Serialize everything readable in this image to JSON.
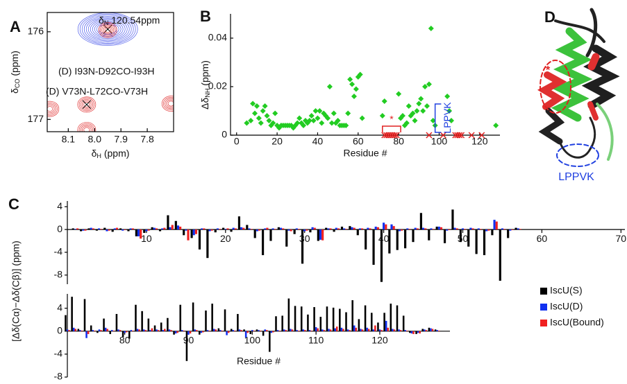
{
  "chart_data": [
    {
      "type": "contour",
      "panel_label": "A",
      "annotation": [
        "δ",
        "N",
        " 120.54ppm"
      ],
      "peak_labels": [
        "(D) I93N-D92CO-I93H",
        "(D) V73N-L72CO-V73H"
      ],
      "xlabel": [
        "δ",
        "H",
        " (ppm)"
      ],
      "ylabel": [
        "δ",
        "CO",
        " (ppm)"
      ],
      "xlim": [
        8.18,
        7.7
      ],
      "ylim": [
        175.78,
        177.14
      ],
      "xticks": [
        8.1,
        {
          "value": 8,
          "label": "8.0"
        },
        7.9,
        7.8
      ],
      "yticks": [
        176,
        177
      ],
      "peaks": [
        {
          "x": 7.95,
          "y": 175.97,
          "color": "#2233e6",
          "marker": "x"
        },
        {
          "x": 7.95,
          "y": 175.98,
          "color": "#e03030"
        },
        {
          "x": 8.03,
          "y": 176.83,
          "color": "#e03030",
          "marker": "x"
        },
        {
          "x": 7.71,
          "y": 176.82,
          "color": "#e03030"
        },
        {
          "x": 8.17,
          "y": 176.88,
          "color": "#e03030"
        },
        {
          "x": 8.03,
          "y": 177.12,
          "color": "#e03030"
        }
      ]
    },
    {
      "type": "scatter",
      "panel_label": "B",
      "xlabel": "Residue #",
      "ylabel": [
        "Δδ",
        "NH",
        " (ppm)"
      ],
      "xlim": [
        -3,
        130
      ],
      "ylim": [
        0,
        0.05
      ],
      "xticks": [
        0,
        20,
        40,
        60,
        80,
        100,
        120
      ],
      "yticks": [
        0,
        0.02,
        0.04
      ],
      "series": [
        {
          "color": "#22cc22",
          "marker": "diamond",
          "x": [
            5,
            7,
            8,
            9,
            10,
            11,
            12,
            13,
            14,
            15,
            16,
            17,
            18,
            19,
            20,
            21,
            22,
            23,
            24,
            25,
            26,
            27,
            28,
            29,
            30,
            31,
            32,
            33,
            34,
            35,
            36,
            37,
            38,
            39,
            40,
            41,
            42,
            43,
            44,
            45,
            46,
            47,
            48,
            49,
            50,
            51,
            52,
            53,
            54,
            55,
            56,
            57,
            58,
            59,
            60,
            61,
            62,
            72,
            73,
            80,
            81,
            82,
            83,
            84,
            85,
            86,
            87,
            88,
            89,
            90,
            91,
            92,
            93,
            94,
            95,
            96,
            97,
            98,
            104,
            105,
            106,
            128
          ],
          "values": [
            0.005,
            0.006,
            0.013,
            0.009,
            0.012,
            0.007,
            0.005,
            0.01,
            0.012,
            0.008,
            0.006,
            0.004,
            0.005,
            0.009,
            0.004,
            0.003,
            0.004,
            0.004,
            0.004,
            0.004,
            0.004,
            0.004,
            0.003,
            0.004,
            0.005,
            0.007,
            0.005,
            0.004,
            0.006,
            0.005,
            0.006,
            0.008,
            0.006,
            0.01,
            0.007,
            0.01,
            0.005,
            0.009,
            0.008,
            0.007,
            0.02,
            0.005,
            0.009,
            0.005,
            0.006,
            0.004,
            0.004,
            0.004,
            0.004,
            0.009,
            0.023,
            0.021,
            0.016,
            0.019,
            0.024,
            0.025,
            0.007,
            0.008,
            0.014,
            0.017,
            0.007,
            0.008,
            0.004,
            0.005,
            0.012,
            0.008,
            0.009,
            0.006,
            0.01,
            0.013,
            0.015,
            0.01,
            0.02,
            0.012,
            0.021,
            0.044,
            0.006,
            0.004,
            0.016,
            0.01,
            0.006,
            0.004
          ]
        },
        {
          "color": "#e02020",
          "marker": "x",
          "x": [
            73,
            74,
            75,
            76,
            77,
            78,
            79,
            95,
            102,
            108,
            109,
            110,
            111,
            116,
            121
          ],
          "values": [
            0,
            0,
            0,
            0,
            0,
            0,
            0,
            0,
            0,
            0,
            0,
            0,
            0,
            0,
            0
          ]
        }
      ],
      "annotations": [
        {
          "text": "*",
          "color": "#e02020"
        },
        {
          "text": "LPPVK",
          "color": "#2040e0"
        }
      ]
    },
    {
      "type": "bar",
      "panel_label": "C",
      "ylabel": "[Δδ(Cα)−Δδ(Cβ)] (ppm)",
      "x": [
        1,
        2,
        3,
        4,
        5,
        6,
        7,
        8,
        9,
        10,
        11,
        12,
        13,
        14,
        15,
        16,
        17,
        18,
        19,
        20,
        21,
        22,
        23,
        24,
        25,
        26,
        27,
        28,
        29,
        30,
        31,
        32,
        33,
        34,
        35,
        36,
        37,
        38,
        39,
        40,
        41,
        42,
        43,
        44,
        45,
        46,
        47,
        48,
        49,
        50,
        51,
        52,
        53,
        54,
        55,
        56,
        57
      ],
      "xlim": [
        0,
        70.5
      ],
      "ylim": [
        -9.6,
        5
      ],
      "xticks": [
        10,
        20,
        30,
        40,
        50,
        60,
        70
      ],
      "yticks": [
        4,
        0,
        -4,
        -8
      ],
      "series": [
        {
          "color": "#000000",
          "values": [
            0.2,
            -0.3,
            0.2,
            -0.2,
            0.3,
            -0.4,
            0.2,
            -0.3,
            -1.2,
            -0.6,
            0.4,
            -0.3,
            2.5,
            1.5,
            -1.0,
            -1.5,
            -3.5,
            -5.0,
            -0.5,
            0.3,
            -0.4,
            2.3,
            0.8,
            -1.5,
            -4.5,
            -2.0,
            0.4,
            -3.0,
            -0.8,
            -6.0,
            -0.5,
            -2.0,
            0.3,
            -0.4,
            0.5,
            0.6,
            -1.0,
            -3.5,
            -6.2,
            -9.2,
            -4.2,
            -3.6,
            -3.3,
            -2.2,
            2.9,
            -1.9,
            0.5,
            -2.4,
            3.5,
            -2.2,
            -3.0,
            -4.3,
            -4.5,
            -1.0,
            -9.0,
            -1.5,
            0.3
          ]
        },
        {
          "color": "#1030f0",
          "values": [
            0.1,
            -0.2,
            0.3,
            0.2,
            -0.3,
            0.2,
            -0.2,
            0.2,
            -1.2,
            -0.3,
            0.3,
            0.2,
            0.4,
            0.7,
            -0.2,
            -1.0,
            0.2,
            -0.3,
            0.2,
            0.1,
            0.3,
            0.4,
            0.2,
            -0.3,
            0.2,
            0.2,
            0.3,
            -0.2,
            0.2,
            -0.3,
            0.4,
            -1.8,
            0.2,
            0.3,
            0.2,
            0.4,
            0.2,
            0.3,
            0.5,
            1.2,
            0.9,
            -0.3,
            0.2,
            0.3,
            0.3,
            0.2,
            0.5,
            -0.2,
            0.3,
            0.2,
            0.3,
            0.2,
            -0.3,
            1.7,
            0.2,
            -0.2,
            0.2
          ]
        },
        {
          "color": "#f02020",
          "values": [
            0.2,
            -0.2,
            0.2,
            0.1,
            -0.2,
            0.3,
            -0.1,
            0.2,
            -1.6,
            -0.2,
            0.2,
            0.3,
            0.8,
            0.5,
            -1.9,
            -0.8,
            0.2,
            -0.2,
            0.1,
            0.2,
            0.2,
            0.3,
            0.1,
            -0.2,
            0.3,
            0.1,
            0.2,
            -0.3,
            0.1,
            -0.2,
            0.3,
            -1.9,
            0.2,
            0.2,
            0.1,
            0.3,
            0.2,
            0.2,
            0.4,
            0.9,
            0.6,
            -0.2,
            0.1,
            0.2,
            0.2,
            0.1,
            0.4,
            -0.1,
            0.2,
            0.1,
            0.2,
            0.1,
            -0.2,
            1.4,
            0.1,
            -0.1,
            0.1
          ]
        }
      ]
    },
    {
      "type": "bar",
      "xlabel": "Residue #",
      "legend": "right",
      "x": [
        71,
        72,
        73,
        74,
        75,
        76,
        77,
        78,
        79,
        80,
        81,
        82,
        83,
        84,
        85,
        86,
        87,
        88,
        89,
        90,
        91,
        92,
        93,
        94,
        95,
        96,
        97,
        98,
        99,
        100,
        101,
        102,
        103,
        104,
        105,
        106,
        107,
        108,
        109,
        110,
        111,
        112,
        113,
        114,
        115,
        116,
        117,
        118,
        119,
        120,
        121,
        122,
        123,
        124,
        125,
        126,
        127,
        128,
        129
      ],
      "xlim": [
        71,
        131
      ],
      "ylim": [
        -8,
        6.5
      ],
      "xticks": [
        80,
        90,
        100,
        110,
        120
      ],
      "yticks": [
        4,
        0,
        -4,
        -8
      ],
      "series": [
        {
          "name": "IscU(S)",
          "color": "#000000",
          "values": [
            2.8,
            6.0,
            0.4,
            5.6,
            1.0,
            -0.3,
            2.2,
            -0.5,
            3.0,
            -1.0,
            -1.3,
            4.6,
            3.5,
            2.2,
            1.0,
            1.5,
            2.3,
            -0.6,
            4.6,
            -5.2,
            5.0,
            -0.6,
            3.6,
            4.8,
            0.5,
            3.8,
            0.4,
            3.0,
            0.3,
            -0.5,
            0.3,
            -0.8,
            -3.6,
            2.6,
            2.7,
            5.7,
            4.4,
            4.3,
            2.9,
            4.2,
            2.5,
            4.3,
            4.1,
            3.9,
            3.3,
            5.4,
            2.1,
            4.5,
            3.2,
            1.5,
            3.2,
            4.8,
            4.5,
            2.7,
            -0.3,
            -0.5,
            0.4,
            0.6,
            0.3
          ]
        },
        {
          "name": "IscU(D)",
          "color": "#1030f0",
          "values": [
            0.3,
            0.6,
            0.2,
            -1.2,
            0.2,
            0.3,
            0.6,
            0.2,
            0.3,
            -0.3,
            0.2,
            0.4,
            0.3,
            0.2,
            0.3,
            0.2,
            0.3,
            -0.4,
            0.2,
            -0.6,
            0.3,
            -0.3,
            0.2,
            0.4,
            0.2,
            -0.7,
            0.2,
            0.3,
            -1.1,
            0.2,
            0.2,
            0.3,
            -0.3,
            0.2,
            0.3,
            0.4,
            0.2,
            0.3,
            0.2,
            0.7,
            0.3,
            0.4,
            0.5,
            0.6,
            0.3,
            1.0,
            0.4,
            0.6,
            0.3,
            0.3,
            1.8,
            0.4,
            0.3,
            0.2,
            -0.4,
            -0.3,
            0.3,
            0.5,
            0.2
          ]
        },
        {
          "name": "IscU(Bound)",
          "color": "#f02020",
          "values": [
            0.2,
            0.4,
            0.1,
            -0.5,
            0.1,
            0.2,
            0.4,
            0.1,
            0.2,
            -0.2,
            0.1,
            0.3,
            0.2,
            0.5,
            0.2,
            0.4,
            0.2,
            -0.3,
            0.1,
            -0.4,
            0.2,
            -0.2,
            0.1,
            0.3,
            0.1,
            -0.3,
            0.1,
            0.2,
            -0.3,
            0.1,
            0.1,
            0.2,
            -0.2,
            0.1,
            0.2,
            0.3,
            0.1,
            0.2,
            0.1,
            0.5,
            0.2,
            0.3,
            0.8,
            0.4,
            0.2,
            0.6,
            0.3,
            0.4,
            1.0,
            0.2,
            0.6,
            0.3,
            0.2,
            0.1,
            -0.5,
            -0.4,
            0.2,
            0.4,
            0.1
          ]
        }
      ]
    }
  ],
  "structure": {
    "panel_label": "D",
    "annotations": [
      "*",
      "LPPVK"
    ]
  }
}
